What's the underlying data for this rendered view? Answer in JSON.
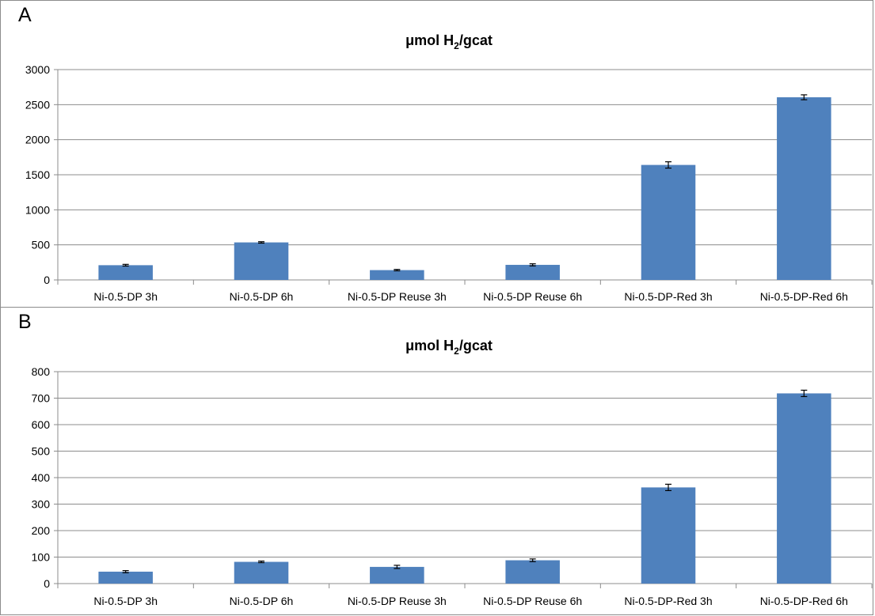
{
  "colors": {
    "bar": "#4f81bd",
    "grid": "#8c8c8c",
    "axis": "#8c8c8c",
    "error": "#000000"
  },
  "chart_data": [
    {
      "panel": "A",
      "type": "bar",
      "title": "μmol H",
      "title_sub": "2",
      "title_suffix": "/gcat",
      "categories": [
        "Ni-0.5-DP 3h",
        "Ni-0.5-DP 6h",
        "Ni-0.5-DP Reuse 3h",
        "Ni-0.5-DP Reuse 6h",
        "Ni-0.5-DP-Red 3h",
        "Ni-0.5-DP-Red 6h"
      ],
      "values": [
        210,
        535,
        140,
        215,
        1640,
        2605
      ],
      "errors": [
        12,
        10,
        10,
        15,
        45,
        35
      ],
      "yticks": [
        0,
        500,
        1000,
        1500,
        2000,
        2500,
        3000
      ],
      "ylim": [
        0,
        3000
      ],
      "grid": true
    },
    {
      "panel": "B",
      "type": "bar",
      "title": "μmol H",
      "title_sub": "2",
      "title_suffix": "/gcat",
      "categories": [
        "Ni-0.5-DP 3h",
        "Ni-0.5-DP 6h",
        "Ni-0.5-DP Reuse 3h",
        "Ni-0.5-DP Reuse 6h",
        "Ni-0.5-DP-Red 3h",
        "Ni-0.5-DP-Red 6h"
      ],
      "values": [
        45,
        82,
        63,
        88,
        363,
        718
      ],
      "errors": [
        4,
        3,
        6,
        5,
        12,
        12
      ],
      "yticks": [
        0,
        100,
        200,
        300,
        400,
        500,
        600,
        700,
        800
      ],
      "ylim": [
        0,
        800
      ],
      "grid": true
    }
  ]
}
